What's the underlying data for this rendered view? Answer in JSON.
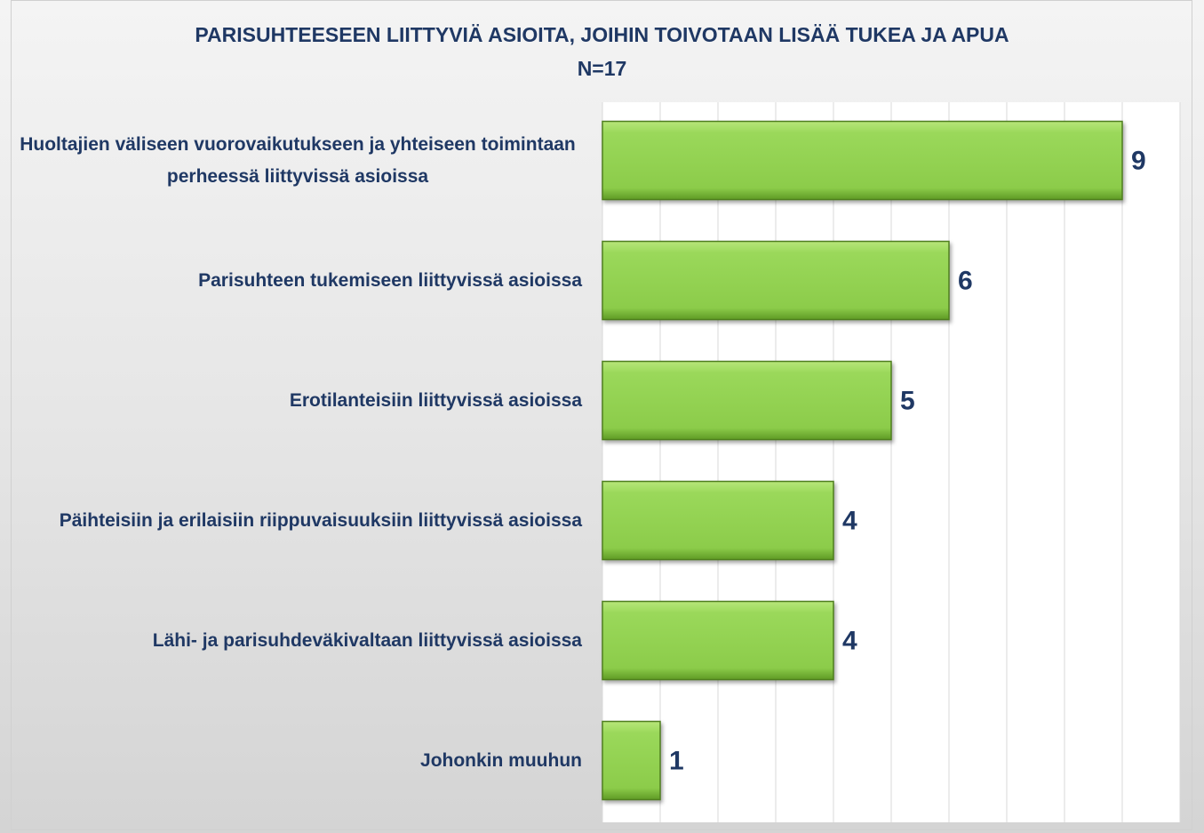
{
  "chart_data": {
    "type": "bar",
    "orientation": "horizontal",
    "title": "PARISUHTEESEEN LIITTYVIÄ ASIOITA, JOIHIN TOIVOTAAN LISÄÄ TUKEA JA APUA N=17",
    "categories": [
      "Huoltajien väliseen vuorovaikutukseen ja yhteiseen toimintaan perheessä liittyvissä asioissa",
      "Parisuhteen tukemiseen liittyvissä asioissa",
      "Erotilanteisiin liittyvissä asioissa",
      "Päihteisiin ja erilaisiin riippuvaisuuksiin liittyvissä asioissa",
      "Lähi- ja parisuhdeväkivaltaan liittyvissä asioissa",
      "Johonkin muuhun"
    ],
    "values": [
      9,
      6,
      5,
      4,
      4,
      1
    ],
    "color": "#92d050",
    "xlim": [
      0,
      10
    ],
    "xticks": [
      0,
      1,
      2,
      3,
      4,
      5,
      6,
      7,
      8,
      9,
      10
    ],
    "grid": true
  }
}
